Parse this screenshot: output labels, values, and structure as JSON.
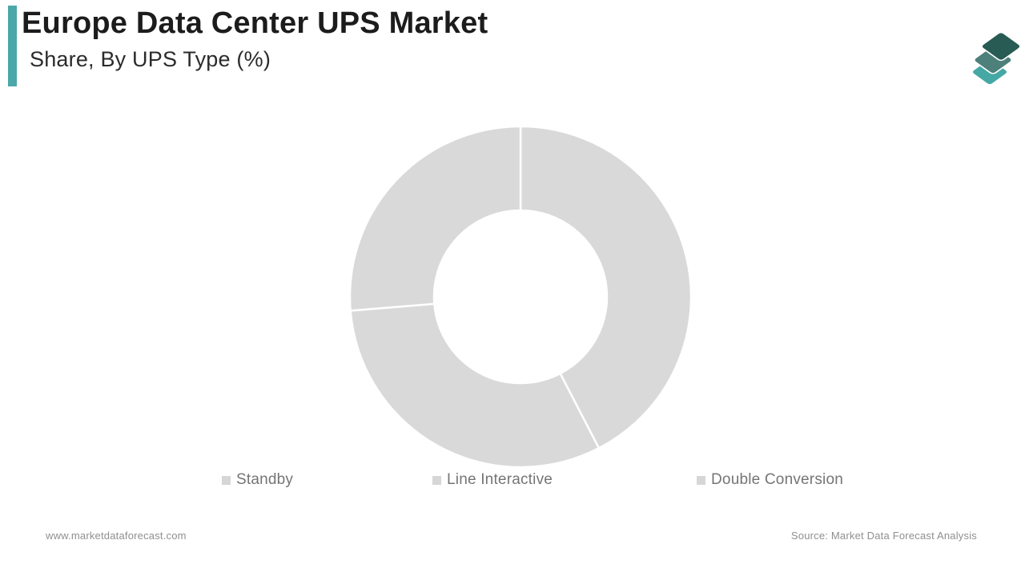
{
  "header": {
    "title": "Europe Data Center UPS Market",
    "subtitle": "Share, By UPS Type (%)"
  },
  "logo": {
    "description": "three stacked diamond layers",
    "layer_colors": [
      "#46a8a4",
      "#4d807a",
      "#275b53"
    ]
  },
  "chart_data": {
    "type": "pie",
    "donut": true,
    "title": "Europe Data Center UPS Market Share, By UPS Type (%)",
    "start_angle_deg": 0,
    "direction": "clockwise",
    "segments": [
      {
        "label": "Standby",
        "value": 42.4
      },
      {
        "label": "Line Interactive",
        "value": 31.3
      },
      {
        "label": "Double Conversion",
        "value": 26.3
      }
    ],
    "slice_color": "#d9d9d9",
    "separator_color": "#ffffff",
    "values_labeled": false,
    "legend_position": "bottom",
    "legend_marker_color": "#d6d6d6"
  },
  "footer": {
    "website": "www.marketdataforecast.com",
    "source": "Source: Market Data Forecast Analysis"
  },
  "colors": {
    "accent_bar": "#4ba7a9",
    "title_text": "#1c1c1c",
    "legend_text": "#757575",
    "footer_text": "#8f8f8f"
  }
}
